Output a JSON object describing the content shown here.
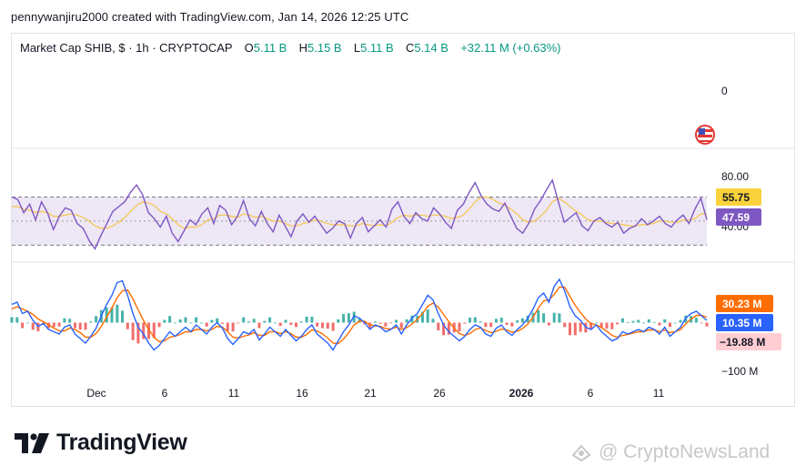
{
  "header": {
    "snapshot_text": "pennywanjiru2000 created with TradingView.com, Jan 14, 2026 12:25 UTC"
  },
  "legend": {
    "symbol": "Market Cap SHIB, $ · 1h · CRYPTOCAP",
    "open_label": "O",
    "open_value": "5.11 B",
    "high_label": "H",
    "high_value": "5.15 B",
    "low_label": "L",
    "low_value": "5.11 B",
    "close_label": "C",
    "close_value": "5.14 B",
    "change": "+32.11 M (+0.63%)"
  },
  "logo": {
    "wordmark": "TradingView"
  },
  "watermark": {
    "text": "@ CryptoNewsLand"
  },
  "colors": {
    "rsi_line": "#7e57c2",
    "rsi_ma": "#f7c548",
    "rsi_band": "#ede7f6",
    "macd_line": "#2962ff",
    "signal_line": "#ff6d00",
    "hist_positive": "#26a69a",
    "hist_negative": "#ef5350",
    "badge_rsi_ma": "#f9d23c",
    "badge_rsi": "#7e57c2",
    "badge_signal": "#ff6d00",
    "badge_macd": "#2962ff",
    "badge_hist": "#ffcdd2"
  },
  "chart_data": [
    {
      "type": "line",
      "name": "price-pane",
      "y_tick_labels": [
        "0"
      ],
      "icon": "us-flag-icon"
    },
    {
      "type": "line",
      "name": "RSI",
      "ylim": [
        25,
        90
      ],
      "y_tick_labels": [
        "80.00",
        "40.00"
      ],
      "band": [
        30,
        70
      ],
      "badges": {
        "rsi": "47.59",
        "rsi_ma": "55.75"
      },
      "series": [
        {
          "values": [
            70,
            68,
            57,
            64,
            51,
            66,
            57,
            43,
            54,
            61,
            59,
            48,
            44,
            34,
            27,
            38,
            48,
            58,
            62,
            66,
            74,
            80,
            72,
            57,
            52,
            45,
            54,
            40,
            33,
            42,
            51,
            47,
            56,
            61,
            48,
            63,
            59,
            47,
            54,
            67,
            52,
            46,
            58,
            48,
            41,
            55,
            46,
            37,
            50,
            56,
            49,
            54,
            47,
            40,
            44,
            50,
            48,
            36,
            48,
            53,
            41,
            46,
            51,
            45,
            60,
            66,
            54,
            48,
            57,
            52,
            50,
            61,
            56,
            49,
            44,
            59,
            64,
            74,
            82,
            71,
            64,
            60,
            58,
            65,
            54,
            44,
            40,
            48,
            60,
            67,
            76,
            84,
            66,
            49,
            53,
            57,
            46,
            42,
            50,
            53,
            48,
            45,
            49,
            40,
            44,
            46,
            52,
            47,
            50,
            54,
            48,
            45,
            51,
            55,
            48,
            60,
            69,
            51
          ]
        },
        {
          "values": [
            62,
            62,
            60,
            59,
            57,
            58,
            57,
            54,
            54,
            55,
            56,
            55,
            53,
            50,
            46,
            44,
            44,
            46,
            49,
            53,
            58,
            63,
            66,
            65,
            63,
            58,
            56,
            52,
            47,
            44,
            45,
            45,
            47,
            51,
            52,
            55,
            55,
            54,
            53,
            56,
            55,
            53,
            54,
            52,
            50,
            50,
            48,
            46,
            46,
            48,
            49,
            51,
            50,
            48,
            47,
            47,
            47,
            46,
            46,
            48,
            47,
            46,
            47,
            46,
            49,
            53,
            55,
            54,
            55,
            55,
            54,
            55,
            55,
            54,
            52,
            53,
            55,
            60,
            66,
            70,
            70,
            68,
            65,
            63,
            60,
            56,
            51,
            49,
            50,
            54,
            59,
            66,
            69,
            66,
            62,
            58,
            55,
            51,
            50,
            50,
            49,
            48,
            48,
            47,
            46,
            46,
            47,
            47,
            48,
            50,
            50,
            49,
            49,
            51,
            51,
            52,
            56,
            56
          ]
        }
      ]
    },
    {
      "type": "line",
      "name": "MACD",
      "ylim": [
        -115,
        125
      ],
      "y_tick_labels": [
        "−100 M"
      ],
      "badges": {
        "signal": "30.23 M",
        "macd": "10.35 M",
        "histogram": "−19.88 M"
      },
      "series": [
        {
          "values": [
            40,
            45,
            20,
            25,
            5,
            -8,
            -2,
            -15,
            -20,
            -25,
            -10,
            -5,
            -25,
            -35,
            -45,
            -30,
            -12,
            15,
            40,
            60,
            88,
            92,
            60,
            20,
            -10,
            -25,
            -45,
            -60,
            -50,
            -35,
            -20,
            -30,
            -20,
            -10,
            -20,
            -5,
            -15,
            -25,
            -10,
            0,
            -12,
            -35,
            -48,
            -35,
            -20,
            -25,
            -15,
            -38,
            -25,
            -10,
            -20,
            -30,
            -15,
            -28,
            -40,
            -30,
            -15,
            -5,
            -25,
            -35,
            -45,
            -60,
            -40,
            -20,
            -5,
            15,
            10,
            0,
            -15,
            -5,
            -10,
            -20,
            -15,
            -5,
            -25,
            -5,
            10,
            20,
            40,
            60,
            50,
            20,
            -5,
            -20,
            -30,
            -40,
            -30,
            -15,
            -5,
            -10,
            -25,
            -30,
            -12,
            -5,
            -20,
            -28,
            -15,
            -5,
            10,
            30,
            55,
            65,
            45,
            80,
            95,
            70,
            35,
            15,
            5,
            -10,
            -15,
            -5,
            -20,
            -30,
            -40,
            -35,
            -20,
            -25,
            -20,
            -15,
            -20,
            -10,
            -15,
            -25,
            -10,
            -30,
            -20,
            -10,
            10,
            20,
            25,
            15,
            5
          ]
        },
        {
          "values": [
            30,
            35,
            30,
            25,
            18,
            8,
            2,
            -5,
            -12,
            -18,
            -18,
            -12,
            -15,
            -22,
            -32,
            -32,
            -24,
            -8,
            12,
            32,
            55,
            70,
            72,
            52,
            28,
            5,
            -15,
            -32,
            -42,
            -40,
            -32,
            -30,
            -26,
            -20,
            -20,
            -15,
            -15,
            -18,
            -15,
            -8,
            -10,
            -20,
            -32,
            -34,
            -30,
            -27,
            -22,
            -28,
            -28,
            -20,
            -20,
            -24,
            -20,
            -24,
            -32,
            -32,
            -26,
            -16,
            -18,
            -25,
            -34,
            -45,
            -46,
            -36,
            -22,
            -5,
            3,
            3,
            -5,
            -7,
            -8,
            -13,
            -14,
            -10,
            -15,
            -11,
            -3,
            7,
            20,
            36,
            43,
            34,
            18,
            2,
            -12,
            -24,
            -28,
            -24,
            -15,
            -12,
            -17,
            -22,
            -19,
            -14,
            -16,
            -21,
            -19,
            -13,
            -3,
            12,
            32,
            48,
            50,
            62,
            78,
            78,
            58,
            38,
            22,
            8,
            -2,
            -5,
            -11,
            -19,
            -28,
            -32,
            -28,
            -26,
            -23,
            -20,
            -20,
            -16,
            -16,
            -20,
            -16,
            -22,
            -20,
            -15,
            -3,
            8,
            16,
            16,
            12
          ]
        }
      ]
    },
    {
      "type": "line",
      "name": "time-axis",
      "x_tick_labels": [
        "Dec",
        "6",
        "11",
        "16",
        "21",
        "26",
        "2026",
        "6",
        "11"
      ]
    }
  ]
}
